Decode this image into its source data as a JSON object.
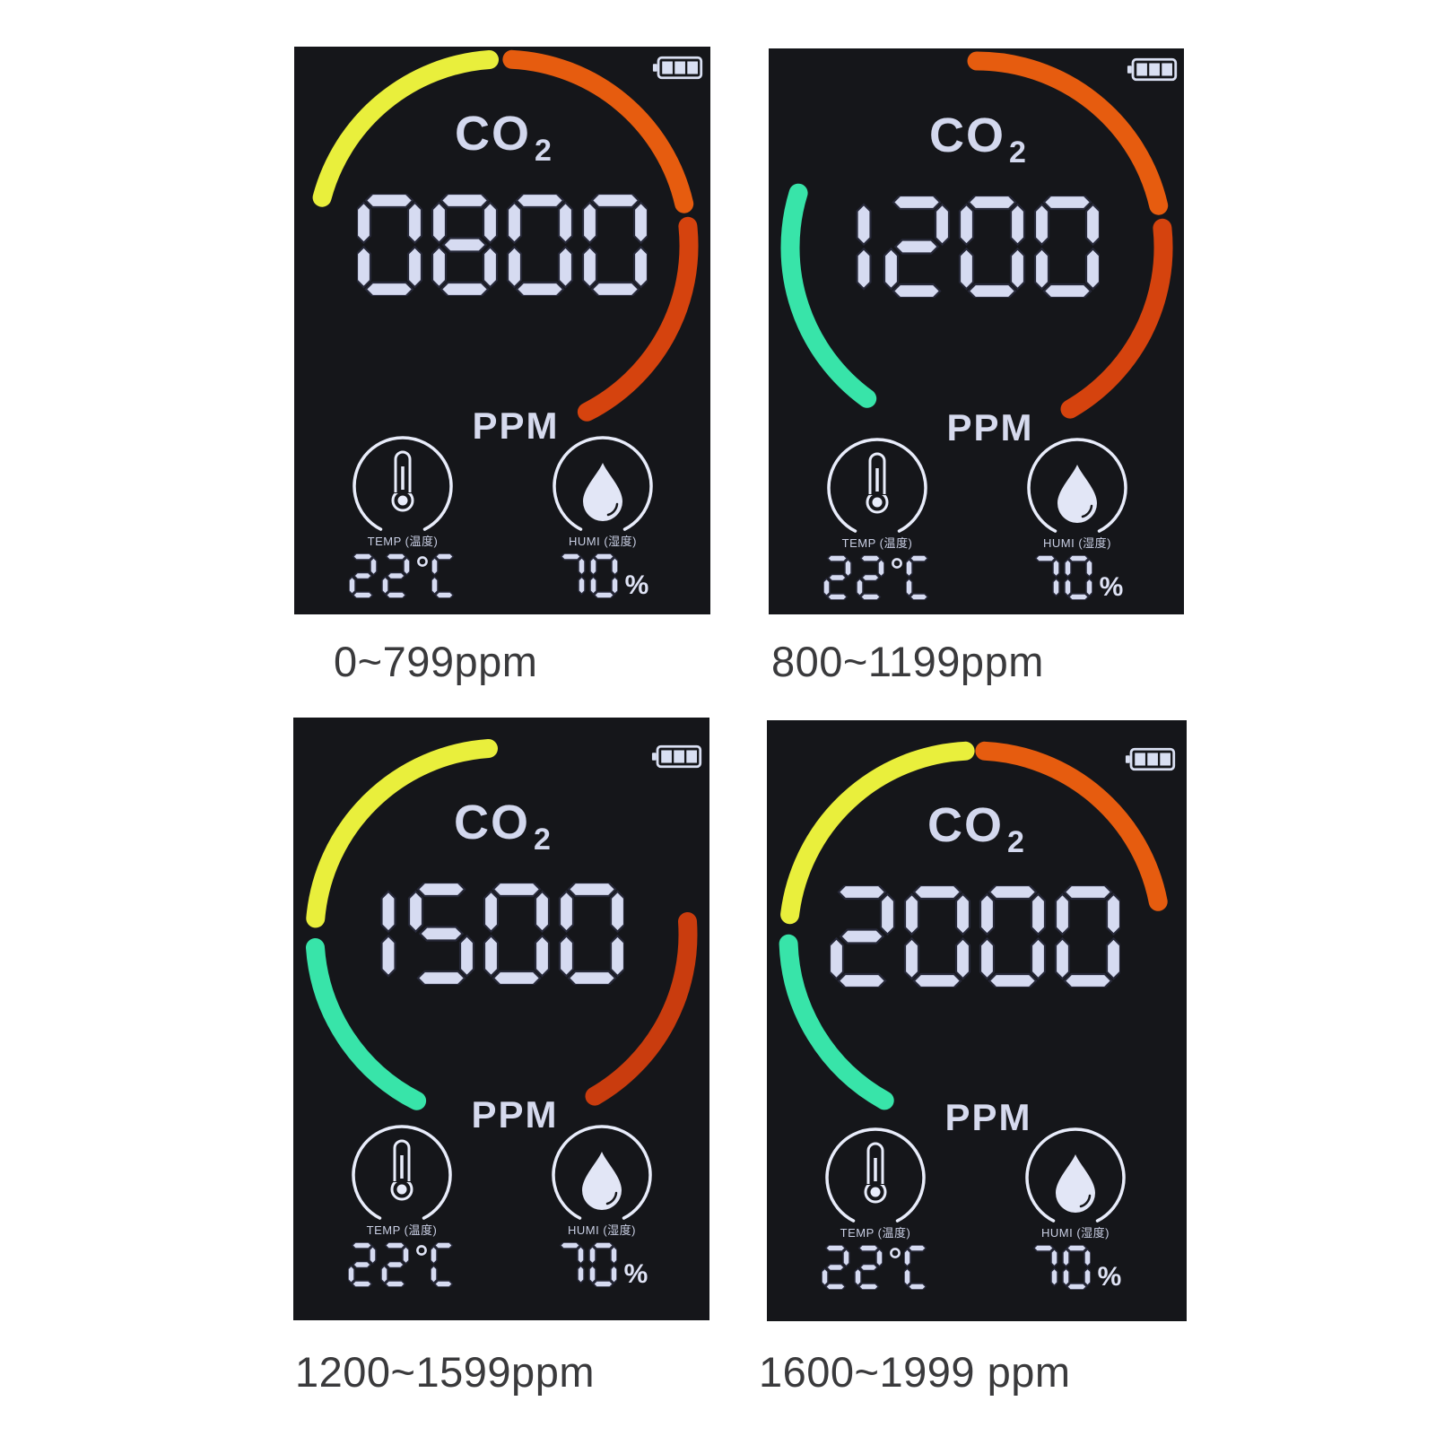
{
  "page": {
    "background_color": "#ffffff"
  },
  "colors": {
    "panel_bg": "#15161a",
    "digit_fill": "#d6dbf1",
    "digit_outline": "#262838",
    "title_text": "#d3d8ee",
    "icon_stroke": "#e8ecfa",
    "caption_text": "#3a3a3c",
    "yellow": "#e9ef3c",
    "orange": "#e65c0f",
    "red": "#d5430e",
    "green": "#38e4a9"
  },
  "panels": [
    {
      "name": "display-0-799",
      "co2_title": {
        "text": "CO",
        "sub": "2"
      },
      "reading": "0800",
      "unit": "PPM",
      "battery_icon": "battery-3-bars-icon",
      "gauge_segments": [
        {
          "color": "#e9ef3c",
          "start_deg": -75,
          "end_deg": -4
        },
        {
          "color": "#e65c0f",
          "start_deg": 3,
          "end_deg": 77
        },
        {
          "color": "#d5430e",
          "start_deg": 84,
          "end_deg": 153
        }
      ],
      "temperature": {
        "icon": "thermometer-icon",
        "label": "TEMP (温度)",
        "value": "22",
        "unit": "°C"
      },
      "humidity": {
        "icon": "water-drop-icon",
        "label": "HUMI (湿度)",
        "value": "70",
        "unit": "%"
      },
      "caption": "0~799ppm"
    },
    {
      "name": "display-800-1199",
      "co2_title": {
        "text": "CO",
        "sub": "2"
      },
      "reading": "1200",
      "unit": "PPM",
      "battery_icon": "battery-3-bars-icon",
      "gauge_segments": [
        {
          "color": "#38e4a9",
          "start_deg": -144,
          "end_deg": -73
        },
        {
          "color": "#e65c0f",
          "start_deg": 0,
          "end_deg": 77
        },
        {
          "color": "#d5430e",
          "start_deg": 84,
          "end_deg": 150
        }
      ],
      "temperature": {
        "icon": "thermometer-icon",
        "label": "TEMP (温度)",
        "value": "22",
        "unit": "°C"
      },
      "humidity": {
        "icon": "water-drop-icon",
        "label": "HUMI (湿度)",
        "value": "70",
        "unit": "%"
      },
      "caption": "800~1199ppm"
    },
    {
      "name": "display-1200-1599",
      "co2_title": {
        "text": "CO",
        "sub": "2"
      },
      "reading": "1500",
      "unit": "PPM",
      "battery_icon": "battery-3-bars-icon",
      "gauge_segments": [
        {
          "color": "#e9ef3c",
          "start_deg": -85,
          "end_deg": -4
        },
        {
          "color": "#38e4a9",
          "start_deg": -153,
          "end_deg": -94
        },
        {
          "color": "#c93c0e",
          "start_deg": 86,
          "end_deg": 150
        }
      ],
      "temperature": {
        "icon": "thermometer-icon",
        "label": "TEMP (温度)",
        "value": "22",
        "unit": "°C"
      },
      "humidity": {
        "icon": "water-drop-icon",
        "label": "HUMI (湿度)",
        "value": "70",
        "unit": "%"
      },
      "caption": "1200~1599ppm"
    },
    {
      "name": "display-1600-1999",
      "co2_title": {
        "text": "CO",
        "sub": "2"
      },
      "reading": "2000",
      "unit": "PPM",
      "battery_icon": "battery-3-bars-icon",
      "gauge_segments": [
        {
          "color": "#e9ef3c",
          "start_deg": -83,
          "end_deg": -3
        },
        {
          "color": "#e65c0f",
          "start_deg": 3,
          "end_deg": 79
        },
        {
          "color": "#38e4a9",
          "start_deg": -151,
          "end_deg": -92
        }
      ],
      "temperature": {
        "icon": "thermometer-icon",
        "label": "TEMP (温度)",
        "value": "22",
        "unit": "°C"
      },
      "humidity": {
        "icon": "water-drop-icon",
        "label": "HUMI (湿度)",
        "value": "70",
        "unit": "%"
      },
      "caption": "1600~1999 ppm"
    }
  ]
}
